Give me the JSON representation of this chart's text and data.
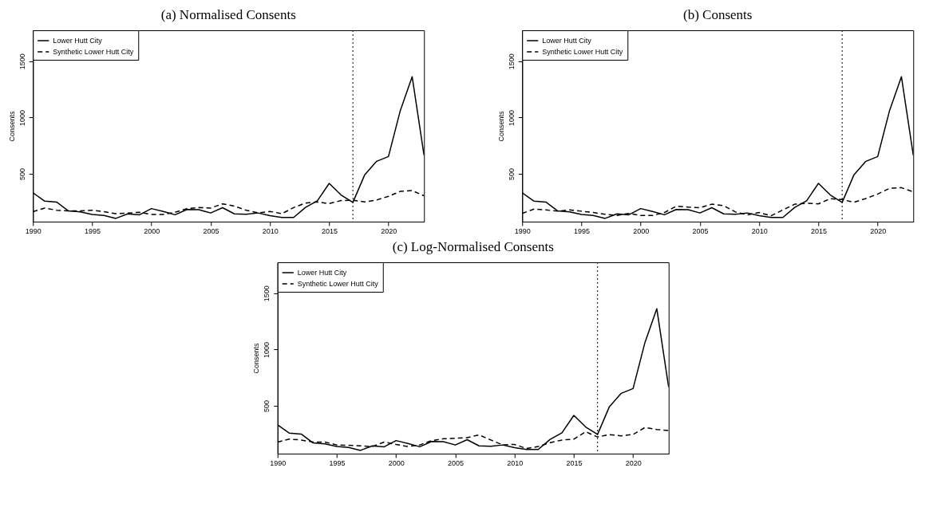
{
  "chart_data": [
    {
      "type": "line",
      "title": "(a) Normalised Consents",
      "ylabel": "Consents",
      "x": [
        1990,
        1991,
        1992,
        1993,
        1994,
        1995,
        1996,
        1997,
        1998,
        1999,
        2000,
        2001,
        2002,
        2003,
        2004,
        2005,
        2006,
        2007,
        2008,
        2009,
        2010,
        2011,
        2012,
        2013,
        2014,
        2015,
        2016,
        2017,
        2018,
        2019,
        2020,
        2021,
        2022,
        2023
      ],
      "xlim": [
        1990,
        2023
      ],
      "ylim": [
        75,
        1775
      ],
      "xticks": [
        1990,
        1995,
        2000,
        2005,
        2010,
        2015,
        2020
      ],
      "yticks": [
        500,
        1000,
        1500
      ],
      "grid": false,
      "legend": "top left",
      "series": [
        {
          "name": "Lower Hutt City",
          "color": "#000000",
          "line_style": "solid",
          "values": [
            331,
            257,
            249,
            170,
            162,
            138,
            130,
            104,
            144,
            136,
            191,
            165,
            136,
            183,
            181,
            152,
            199,
            144,
            141,
            152,
            128,
            112,
            112,
            202,
            260,
            415,
            312,
            246,
            492,
            611,
            653,
            1062,
            1363,
            666
          ]
        },
        {
          "name": "Synthetic Lower Hutt City",
          "color": "#000000",
          "line_style": "dashed",
          "values": [
            163,
            196,
            176,
            171,
            171,
            176,
            163,
            146,
            151,
            158,
            139,
            139,
            158,
            191,
            200,
            196,
            233,
            213,
            176,
            153,
            166,
            146,
            200,
            240,
            250,
            235,
            262,
            265,
            250,
            267,
            300,
            344,
            351,
            305
          ]
        }
      ],
      "ref_lines": [
        {
          "axis": "x",
          "value": 2017,
          "line_style": "dotted",
          "color": "#000000"
        }
      ]
    },
    {
      "type": "line",
      "title": "(b) Consents",
      "ylabel": "Consents",
      "x": [
        1990,
        1991,
        1992,
        1993,
        1994,
        1995,
        1996,
        1997,
        1998,
        1999,
        2000,
        2001,
        2002,
        2003,
        2004,
        2005,
        2006,
        2007,
        2008,
        2009,
        2010,
        2011,
        2012,
        2013,
        2014,
        2015,
        2016,
        2017,
        2018,
        2019,
        2020,
        2021,
        2022,
        2023
      ],
      "xlim": [
        1990,
        2023
      ],
      "ylim": [
        75,
        1775
      ],
      "xticks": [
        1990,
        1995,
        2000,
        2005,
        2010,
        2015,
        2020
      ],
      "yticks": [
        500,
        1000,
        1500
      ],
      "grid": false,
      "legend": "top left",
      "series": [
        {
          "name": "Lower Hutt City",
          "color": "#000000",
          "line_style": "solid",
          "values": [
            331,
            257,
            249,
            170,
            162,
            138,
            130,
            104,
            144,
            136,
            191,
            165,
            136,
            183,
            181,
            152,
            199,
            144,
            141,
            152,
            128,
            112,
            112,
            202,
            260,
            415,
            312,
            246,
            492,
            611,
            653,
            1062,
            1363,
            666
          ]
        },
        {
          "name": "Synthetic Lower Hutt City",
          "color": "#000000",
          "line_style": "dashed",
          "values": [
            148,
            186,
            179,
            168,
            179,
            168,
            156,
            140,
            130,
            148,
            130,
            130,
            156,
            212,
            204,
            199,
            230,
            217,
            161,
            135,
            156,
            127,
            179,
            230,
            238,
            233,
            279,
            271,
            247,
            281,
            320,
            371,
            377,
            340
          ]
        }
      ],
      "ref_lines": [
        {
          "axis": "x",
          "value": 2017,
          "line_style": "dotted",
          "color": "#000000"
        }
      ]
    },
    {
      "type": "line",
      "title": "(c) Log-Normalised Consents",
      "ylabel": "Consents",
      "x": [
        1990,
        1991,
        1992,
        1993,
        1994,
        1995,
        1996,
        1997,
        1998,
        1999,
        2000,
        2001,
        2002,
        2003,
        2004,
        2005,
        2006,
        2007,
        2008,
        2009,
        2010,
        2011,
        2012,
        2013,
        2014,
        2015,
        2016,
        2017,
        2018,
        2019,
        2020,
        2021,
        2022,
        2023
      ],
      "xlim": [
        1990,
        2023
      ],
      "ylim": [
        75,
        1775
      ],
      "xticks": [
        1990,
        1995,
        2000,
        2005,
        2010,
        2015,
        2020
      ],
      "yticks": [
        500,
        1000,
        1500
      ],
      "grid": false,
      "legend": "top left",
      "series": [
        {
          "name": "Lower Hutt City",
          "color": "#000000",
          "line_style": "solid",
          "values": [
            331,
            257,
            249,
            170,
            162,
            138,
            130,
            104,
            144,
            136,
            191,
            165,
            136,
            183,
            181,
            152,
            199,
            144,
            141,
            152,
            128,
            112,
            112,
            202,
            260,
            415,
            312,
            246,
            492,
            611,
            653,
            1062,
            1363,
            666
          ]
        },
        {
          "name": "Synthetic Lower Hutt City",
          "color": "#000000",
          "line_style": "dashed",
          "values": [
            178,
            204,
            196,
            178,
            178,
            152,
            149,
            144,
            138,
            178,
            157,
            138,
            152,
            191,
            207,
            212,
            217,
            241,
            196,
            152,
            157,
            120,
            138,
            173,
            196,
            204,
            270,
            223,
            244,
            233,
            246,
            307,
            289,
            281
          ]
        }
      ],
      "ref_lines": [
        {
          "axis": "x",
          "value": 2017,
          "line_style": "dotted",
          "color": "#000000"
        }
      ]
    }
  ]
}
